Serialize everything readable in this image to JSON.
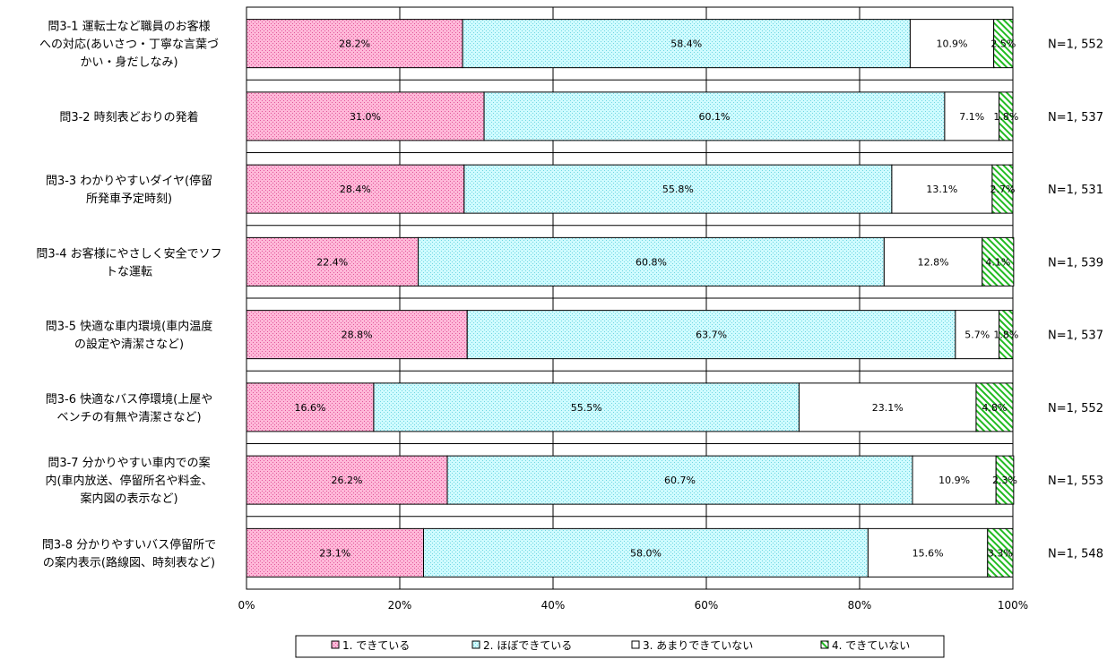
{
  "chart_data": {
    "type": "bar",
    "orientation": "horizontal",
    "stacked": true,
    "percent_stacked": true,
    "categories": [
      [
        "問3-1 運転士など職員のお客様",
        "への対応(あいさつ・丁寧な言葉づ",
        "かい・身だしなみ)"
      ],
      [
        "問3-2 時刻表どおりの発着"
      ],
      [
        "問3-3 わかりやすいダイヤ(停留",
        "所発車予定時刻)"
      ],
      [
        "問3-4 お客様にやさしく安全でソフ",
        "トな運転"
      ],
      [
        "問3-5 快適な車内環境(車内温度",
        "の設定や清潔さなど)"
      ],
      [
        "問3-6 快適なバス停環境(上屋や",
        "ベンチの有無や清潔さなど)"
      ],
      [
        "問3-7 分かりやすい車内での案",
        "内(車内放送、停留所名や料金、",
        "案内図の表示など)"
      ],
      [
        "問3-8 分かりやすいバス停留所で",
        "の案内表示(路線図、時刻表など)"
      ]
    ],
    "series": [
      {
        "name": "1. できている",
        "color": "#f4a6c8",
        "pattern": "dots-pink",
        "values": [
          28.2,
          31.0,
          28.4,
          22.4,
          28.8,
          16.6,
          26.2,
          23.1
        ]
      },
      {
        "name": "2. ほぼできている",
        "color": "#ccf8fc",
        "pattern": "dots-cyan",
        "values": [
          58.4,
          60.1,
          55.8,
          60.8,
          63.7,
          55.5,
          60.7,
          58.0
        ]
      },
      {
        "name": "3. あまりできていない",
        "color": "#ffffff",
        "pattern": "none",
        "values": [
          10.9,
          7.1,
          13.1,
          12.8,
          5.7,
          23.1,
          10.9,
          15.6
        ]
      },
      {
        "name": "4. できていない",
        "color": "#33cc33",
        "pattern": "diagonal-green",
        "values": [
          2.5,
          1.8,
          2.7,
          4.1,
          1.8,
          4.8,
          2.3,
          3.3
        ]
      }
    ],
    "n_labels": [
      "N=1, 552",
      "N=1, 537",
      "N=1, 531",
      "N=1, 539",
      "N=1, 537",
      "N=1, 552",
      "N=1, 553",
      "N=1, 548"
    ],
    "xlim": [
      0,
      100
    ],
    "x_ticks": [
      "0%",
      "20%",
      "40%",
      "60%",
      "80%",
      "100%"
    ],
    "grid": true,
    "legend_position": "bottom"
  }
}
